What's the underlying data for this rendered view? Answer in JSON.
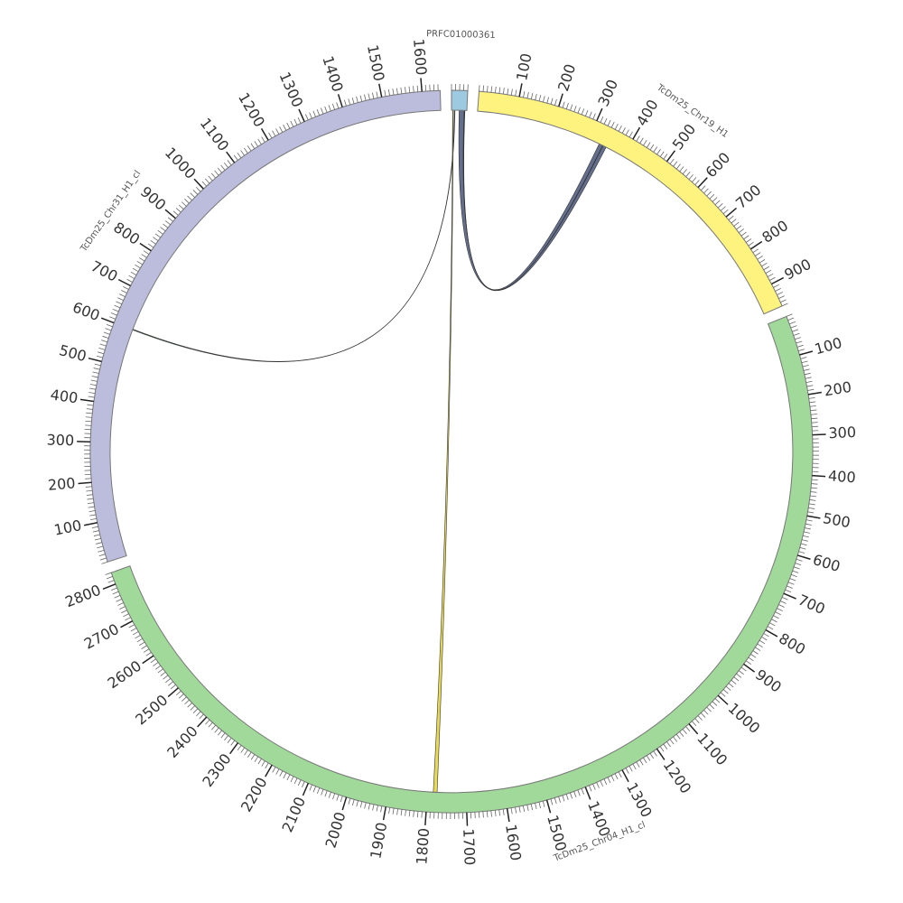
{
  "chart_data": {
    "type": "circos",
    "minor_tick_step": 10,
    "segments": [
      {
        "name": "PRFC01000361",
        "length": 40,
        "color": "#9ecae1",
        "ticks": []
      },
      {
        "name": "TcDm25_Chr19_H1",
        "length": 960,
        "color": "#fff380",
        "ticks": [
          100,
          200,
          300,
          400,
          500,
          600,
          700,
          800,
          900
        ]
      },
      {
        "name": "TcDm25_Chr04_H1_cl",
        "length": 2830,
        "color": "#a1d99b",
        "ticks": [
          100,
          200,
          300,
          400,
          500,
          600,
          700,
          800,
          900,
          1000,
          1100,
          1200,
          1300,
          1400,
          1500,
          1600,
          1700,
          1800,
          1900,
          2000,
          2100,
          2200,
          2300,
          2400,
          2500,
          2600,
          2700,
          2800
        ]
      },
      {
        "name": "TcDm25_Chr31_H1_cl",
        "length": 1645,
        "color": "#bcbddc",
        "ticks": [
          100,
          200,
          300,
          400,
          500,
          600,
          700,
          800,
          900,
          1000,
          1100,
          1200,
          1300,
          1400,
          1500,
          1600
        ]
      }
    ],
    "links": [
      {
        "color": "#5b6786",
        "source": {
          "segment": 0,
          "start": 20,
          "end": 35
        },
        "target": {
          "segment": 1,
          "start": 330,
          "end": 350
        }
      },
      {
        "color": "#d62728",
        "source": {
          "segment": 0,
          "start": 33,
          "end": 34
        },
        "target": {
          "segment": 1,
          "start": 340,
          "end": 341
        }
      },
      {
        "color": "#2e6b3a",
        "source": {
          "segment": 0,
          "start": 8,
          "end": 9
        },
        "target": {
          "segment": 3,
          "start": 600,
          "end": 602
        }
      },
      {
        "color": "#e8d84a",
        "source": {
          "segment": 0,
          "start": 3,
          "end": 5
        },
        "target": {
          "segment": 2,
          "start": 1775,
          "end": 1785
        }
      }
    ]
  }
}
